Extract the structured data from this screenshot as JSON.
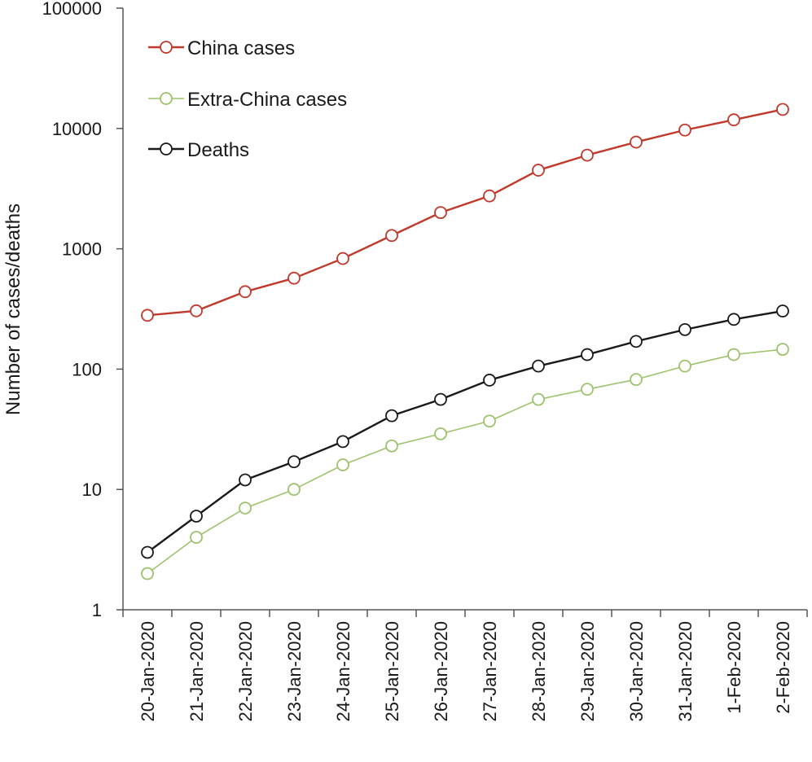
{
  "chart_data": {
    "type": "line",
    "title": "",
    "xlabel": "",
    "ylabel": "Number of cases/deaths",
    "y_scale": "log",
    "ylim": [
      1,
      100000
    ],
    "y_ticks": [
      "1",
      "10",
      "100",
      "1000",
      "10000",
      "100000"
    ],
    "grid": false,
    "legend_position": "top-left",
    "categories": [
      "20-Jan-2020",
      "21-Jan-2020",
      "22-Jan-2020",
      "23-Jan-2020",
      "24-Jan-2020",
      "25-Jan-2020",
      "26-Jan-2020",
      "27-Jan-2020",
      "28-Jan-2020",
      "29-Jan-2020",
      "30-Jan-2020",
      "31-Jan-2020",
      "1-Feb-2020",
      "2-Feb-2020"
    ],
    "series": [
      {
        "name": "China cases",
        "color": "#c0392b",
        "values": [
          280,
          305,
          440,
          570,
          830,
          1290,
          2000,
          2750,
          4500,
          6000,
          7700,
          9700,
          11800,
          14400
        ]
      },
      {
        "name": "Extra-China cases",
        "color": "#9cc36b",
        "values": [
          2,
          4,
          7,
          10,
          16,
          23,
          29,
          37,
          56,
          68,
          82,
          106,
          132,
          146
        ]
      },
      {
        "name": "Deaths",
        "color": "#1a1a1a",
        "values": [
          3,
          6,
          12,
          17,
          25,
          41,
          56,
          81,
          106,
          132,
          170,
          213,
          259,
          304
        ]
      }
    ]
  }
}
